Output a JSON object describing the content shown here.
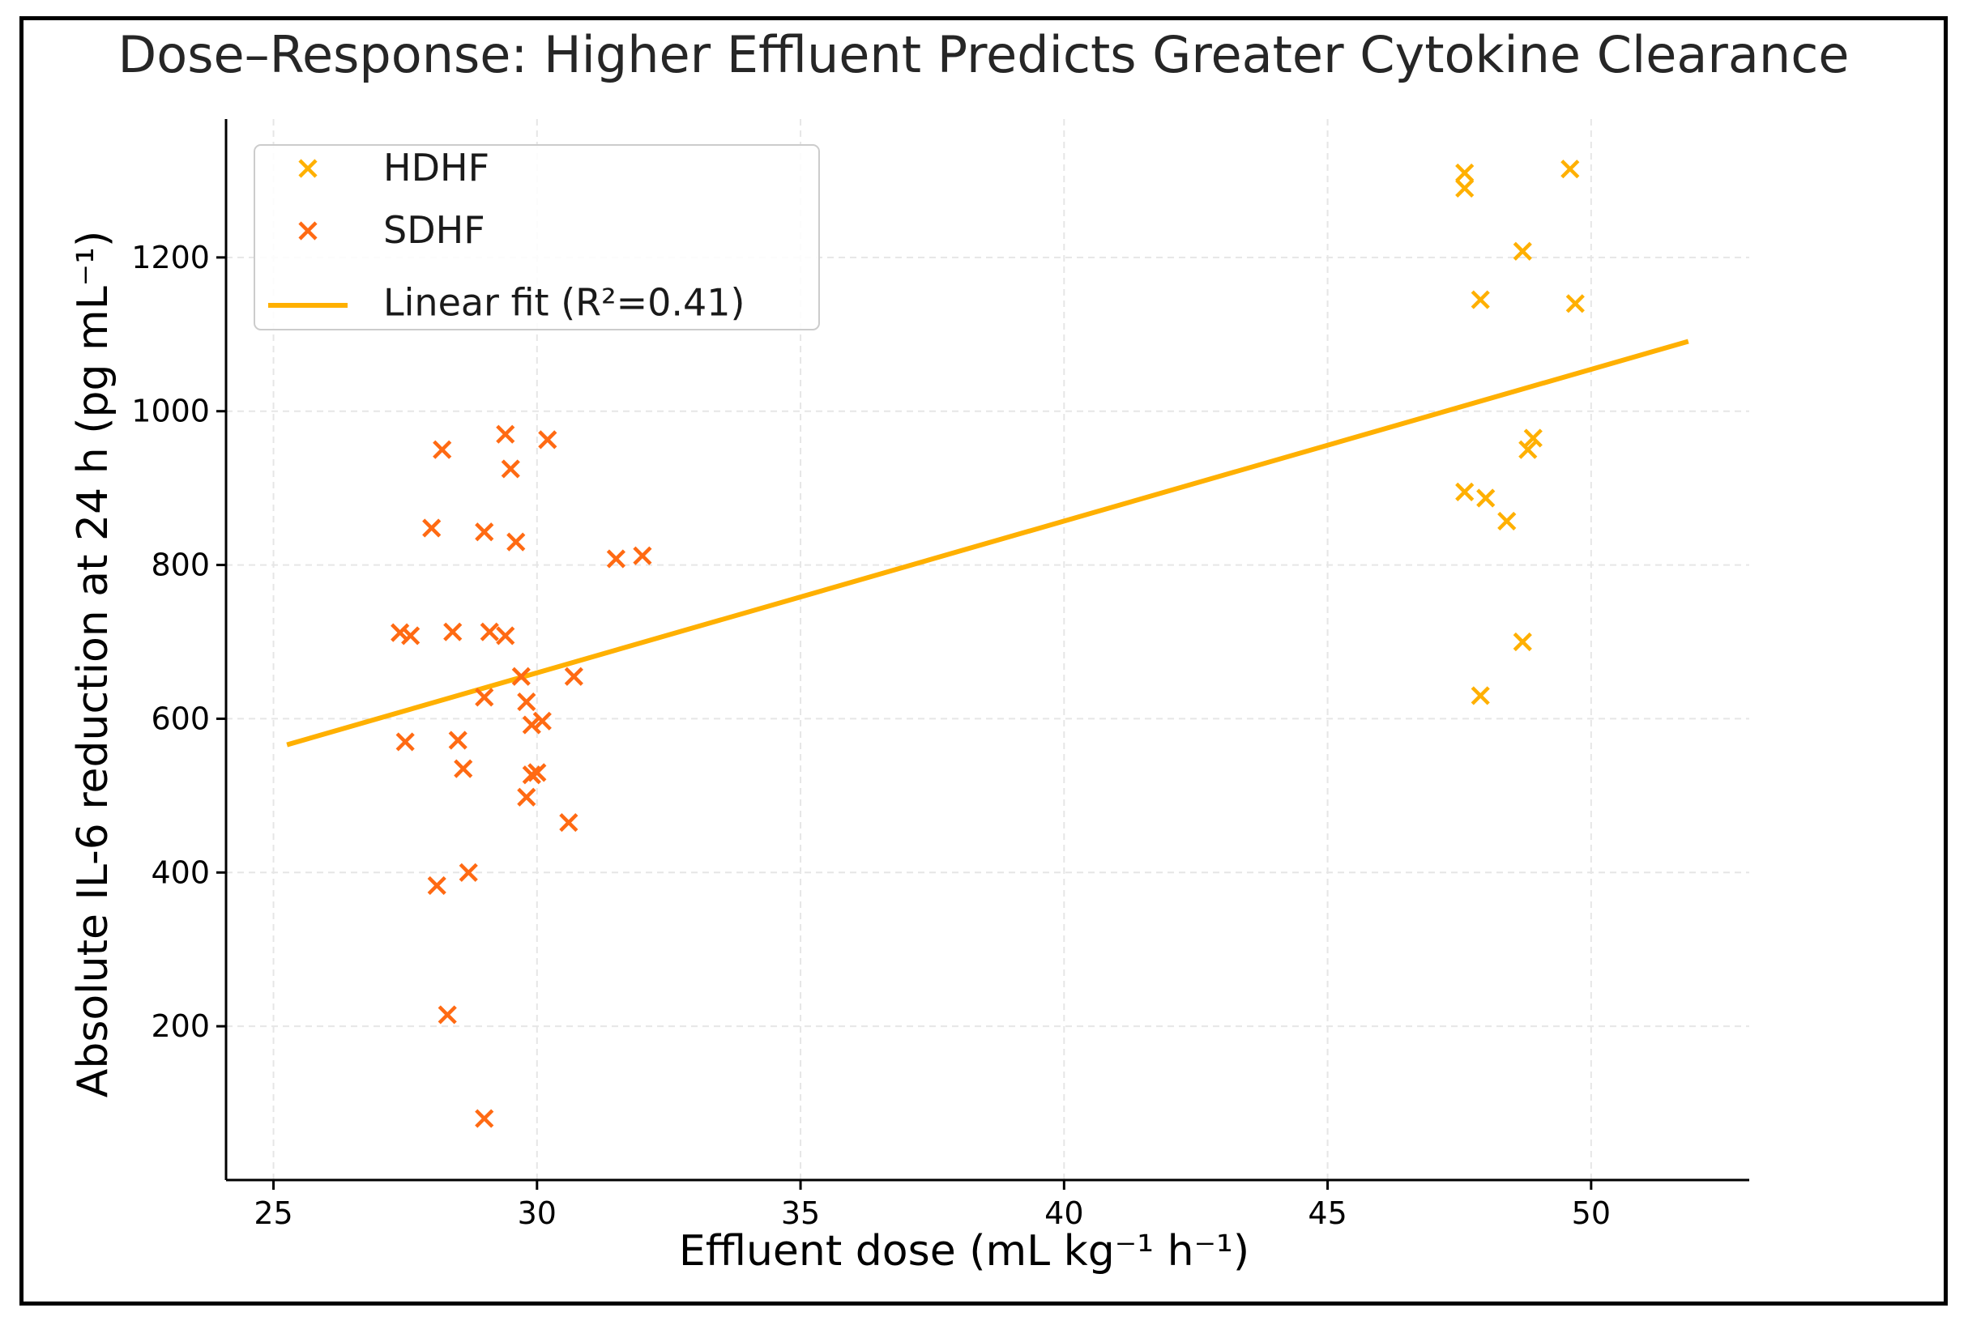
{
  "chart_data": {
    "type": "scatter",
    "title": "Dose–Response: Higher Effluent Predicts Greater Cytokine Clearance",
    "xlabel": "Effluent dose (mL kg⁻¹ h⁻¹)",
    "ylabel": "Absolute IL-6 reduction at 24 h (pg mL⁻¹)",
    "xlim": [
      24.1,
      53.0
    ],
    "ylim": [
      0,
      1380
    ],
    "xticks": [
      25,
      30,
      35,
      40,
      45,
      50
    ],
    "yticks": [
      200,
      400,
      600,
      800,
      1000,
      1200
    ],
    "grid": true,
    "legend_position": "top-left",
    "colors": {
      "HDHF": "#FFB000",
      "SDHF": "#FF6A13",
      "fit": "#FFB000"
    },
    "series": [
      {
        "name": "HDHF",
        "marker": "x",
        "points": [
          [
            47.6,
            1310
          ],
          [
            47.6,
            1290
          ],
          [
            49.6,
            1315
          ],
          [
            48.7,
            1208
          ],
          [
            47.9,
            1145
          ],
          [
            49.7,
            1140
          ],
          [
            48.9,
            965
          ],
          [
            48.8,
            950
          ],
          [
            47.6,
            895
          ],
          [
            48.0,
            887
          ],
          [
            48.4,
            857
          ],
          [
            48.7,
            700
          ],
          [
            47.9,
            630
          ]
        ]
      },
      {
        "name": "SDHF",
        "marker": "x",
        "points": [
          [
            29.4,
            970
          ],
          [
            30.2,
            963
          ],
          [
            28.2,
            950
          ],
          [
            29.5,
            925
          ],
          [
            28.0,
            848
          ],
          [
            29.0,
            843
          ],
          [
            29.6,
            830
          ],
          [
            31.5,
            808
          ],
          [
            32.0,
            812
          ],
          [
            27.4,
            712
          ],
          [
            27.6,
            708
          ],
          [
            28.4,
            713
          ],
          [
            29.1,
            713
          ],
          [
            29.4,
            708
          ],
          [
            29.7,
            655
          ],
          [
            30.7,
            655
          ],
          [
            29.0,
            628
          ],
          [
            29.8,
            622
          ],
          [
            29.9,
            592
          ],
          [
            30.1,
            597
          ],
          [
            27.5,
            570
          ],
          [
            28.5,
            572
          ],
          [
            28.6,
            535
          ],
          [
            29.9,
            527
          ],
          [
            30.0,
            530
          ],
          [
            29.8,
            498
          ],
          [
            30.6,
            465
          ],
          [
            28.7,
            400
          ],
          [
            28.1,
            383
          ],
          [
            28.3,
            215
          ],
          [
            29.0,
            80
          ]
        ]
      }
    ],
    "fit": {
      "name": "Linear fit (R²=0.41)",
      "x": [
        25.3,
        51.8
      ],
      "y": [
        567,
        1090
      ]
    }
  }
}
